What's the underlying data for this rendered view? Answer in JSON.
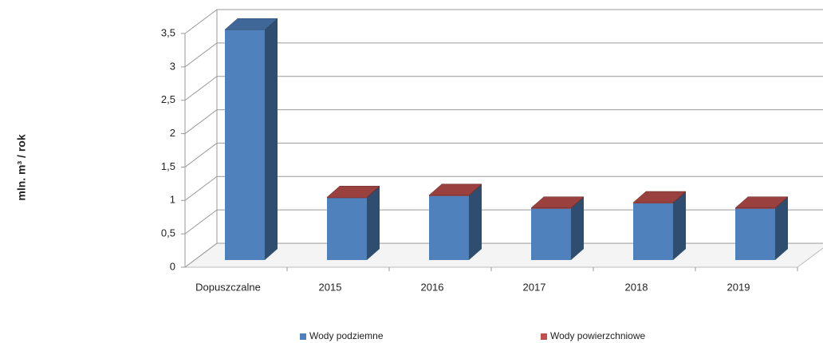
{
  "chart_data": {
    "type": "bar3d",
    "y_label": "mln. m³ / rok",
    "categories": [
      "Dopuszczalne",
      "2015",
      "2016",
      "2017",
      "2018",
      "2019"
    ],
    "series": [
      {
        "name": "Wody podziemne",
        "color": "#4f81bd",
        "values": [
          3.45,
          0.93,
          0.96,
          0.77,
          0.85,
          0.77
        ]
      },
      {
        "name": "Wody powierzchniowe",
        "color": "#c0504d",
        "values": [
          null,
          0.01,
          0.01,
          0.01,
          0.01,
          0.01
        ]
      }
    ],
    "stacked": true,
    "ylim": [
      0,
      3.5
    ],
    "yticks": [
      0,
      {
        "value": 0.5,
        "label": "0,5"
      },
      1,
      {
        "value": 1.5,
        "label": "1,5"
      },
      2,
      {
        "value": 2.5,
        "label": "2,5"
      },
      3,
      {
        "value": 3.5,
        "label": "3,5"
      }
    ],
    "grid": true,
    "legend": "bottom"
  }
}
